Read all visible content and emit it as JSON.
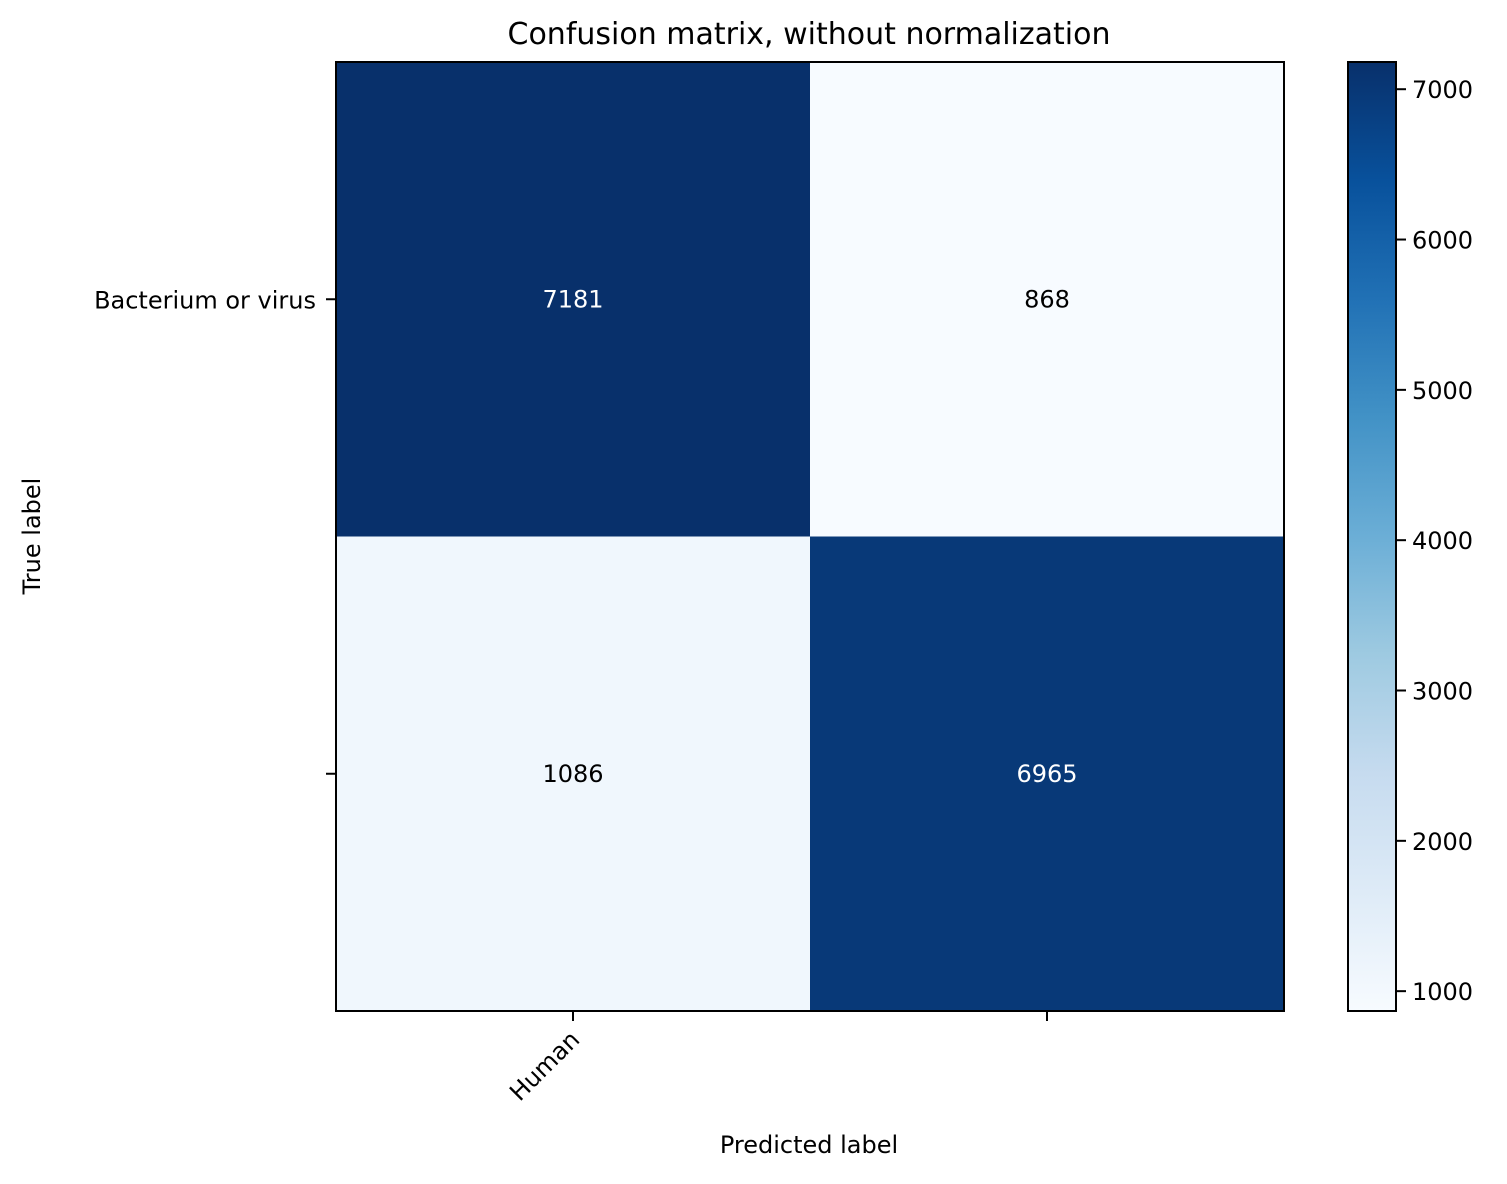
{
  "chart_data": {
    "type": "heatmap",
    "title": "Confusion matrix, without normalization",
    "xlabel": "Predicted label",
    "ylabel": "True label",
    "x_categories": [
      "Human",
      ""
    ],
    "y_categories": [
      "Bacterium or virus",
      ""
    ],
    "values": [
      [
        7181,
        868
      ],
      [
        1086,
        6965
      ]
    ],
    "colormap": "Blues",
    "colorbar": {
      "range": [
        868,
        7181
      ],
      "ticks": [
        1000,
        2000,
        3000,
        4000,
        5000,
        6000,
        7000
      ],
      "tick_labels": [
        "1000",
        "2000",
        "3000",
        "4000",
        "5000",
        "6000",
        "7000"
      ]
    },
    "text_colors": {
      "dark_cell": "#ffffff",
      "light_cell": "#000000"
    },
    "grid": false
  }
}
